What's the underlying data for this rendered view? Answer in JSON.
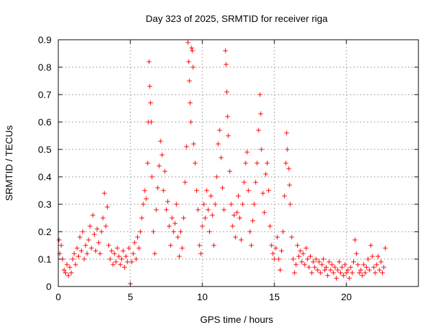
{
  "chart_data": {
    "type": "scatter",
    "title": "Day 323 of 2025, SRMTID for receiver riga",
    "xlabel": "GPS time / hours",
    "ylabel": "SRMTID / TECUs",
    "xlim": [
      0,
      25
    ],
    "ylim": [
      0,
      0.9
    ],
    "xticks": [
      0,
      5,
      10,
      15,
      20
    ],
    "yticks": [
      0,
      0.1,
      0.2,
      0.3,
      0.4,
      0.5,
      0.6,
      0.7,
      0.8,
      0.9
    ],
    "xtick_labels": [
      "0",
      "5",
      "10",
      "15",
      "20"
    ],
    "ytick_labels": [
      "0",
      "0.1",
      "0.2",
      "0.3",
      "0.4",
      "0.5",
      "0.6",
      "0.7",
      "0.8",
      "0.9"
    ],
    "grid": true,
    "marker": "plus",
    "color": "#ff0000",
    "series": [
      {
        "name": "SRMTID",
        "points": [
          [
            0.05,
            0.17
          ],
          [
            0.1,
            0.12
          ],
          [
            0.2,
            0.15
          ],
          [
            0.3,
            0.1
          ],
          [
            0.4,
            0.06
          ],
          [
            0.5,
            0.05
          ],
          [
            0.6,
            0.08
          ],
          [
            0.7,
            0.04
          ],
          [
            0.8,
            0.07
          ],
          [
            0.9,
            0.05
          ],
          [
            1.0,
            0.1
          ],
          [
            1.1,
            0.12
          ],
          [
            1.2,
            0.08
          ],
          [
            1.3,
            0.14
          ],
          [
            1.4,
            0.11
          ],
          [
            1.5,
            0.18
          ],
          [
            1.6,
            0.13
          ],
          [
            1.7,
            0.2
          ],
          [
            1.8,
            0.1
          ],
          [
            1.9,
            0.15
          ],
          [
            2.0,
            0.12
          ],
          [
            2.1,
            0.17
          ],
          [
            2.2,
            0.22
          ],
          [
            2.3,
            0.14
          ],
          [
            2.4,
            0.26
          ],
          [
            2.5,
            0.19
          ],
          [
            2.6,
            0.13
          ],
          [
            2.7,
            0.21
          ],
          [
            2.8,
            0.16
          ],
          [
            2.9,
            0.12
          ],
          [
            3.0,
            0.2
          ],
          [
            3.1,
            0.25
          ],
          [
            3.2,
            0.34
          ],
          [
            3.3,
            0.22
          ],
          [
            3.4,
            0.29
          ],
          [
            3.5,
            0.15
          ],
          [
            3.6,
            0.1
          ],
          [
            3.7,
            0.13
          ],
          [
            3.8,
            0.08
          ],
          [
            3.9,
            0.12
          ],
          [
            4.0,
            0.09
          ],
          [
            4.1,
            0.14
          ],
          [
            4.2,
            0.11
          ],
          [
            4.3,
            0.08
          ],
          [
            4.4,
            0.1
          ],
          [
            4.5,
            0.13
          ],
          [
            4.6,
            0.07
          ],
          [
            4.7,
            0.11
          ],
          [
            4.8,
            0.09
          ],
          [
            4.9,
            0.14
          ],
          [
            5.0,
            0.01
          ],
          [
            5.1,
            0.09
          ],
          [
            5.2,
            0.12
          ],
          [
            5.3,
            0.16
          ],
          [
            5.4,
            0.1
          ],
          [
            5.5,
            0.18
          ],
          [
            5.6,
            0.14
          ],
          [
            5.7,
            0.2
          ],
          [
            5.8,
            0.25
          ],
          [
            5.9,
            0.3
          ],
          [
            6.0,
            0.35
          ],
          [
            6.1,
            0.32
          ],
          [
            6.2,
            0.45
          ],
          [
            6.25,
            0.6
          ],
          [
            6.3,
            0.82
          ],
          [
            6.35,
            0.73
          ],
          [
            6.4,
            0.67
          ],
          [
            6.45,
            0.6
          ],
          [
            6.5,
            0.4
          ],
          [
            6.6,
            0.2
          ],
          [
            6.7,
            0.12
          ],
          [
            6.8,
            0.28
          ],
          [
            6.9,
            0.36
          ],
          [
            7.0,
            0.44
          ],
          [
            7.1,
            0.53
          ],
          [
            7.2,
            0.48
          ],
          [
            7.3,
            0.35
          ],
          [
            7.4,
            0.42
          ],
          [
            7.5,
            0.28
          ],
          [
            7.6,
            0.31
          ],
          [
            7.7,
            0.22
          ],
          [
            7.8,
            0.15
          ],
          [
            7.9,
            0.25
          ],
          [
            8.0,
            0.2
          ],
          [
            8.1,
            0.23
          ],
          [
            8.2,
            0.3
          ],
          [
            8.3,
            0.18
          ],
          [
            8.4,
            0.11
          ],
          [
            8.5,
            0.2
          ],
          [
            8.6,
            0.14
          ],
          [
            8.7,
            0.25
          ],
          [
            8.8,
            0.38
          ],
          [
            8.9,
            0.51
          ],
          [
            9.0,
            0.89
          ],
          [
            9.05,
            0.82
          ],
          [
            9.1,
            0.75
          ],
          [
            9.15,
            0.67
          ],
          [
            9.2,
            0.6
          ],
          [
            9.25,
            0.87
          ],
          [
            9.3,
            0.86
          ],
          [
            9.35,
            0.8
          ],
          [
            9.4,
            0.52
          ],
          [
            9.5,
            0.45
          ],
          [
            9.6,
            0.35
          ],
          [
            9.7,
            0.28
          ],
          [
            9.8,
            0.15
          ],
          [
            9.9,
            0.12
          ],
          [
            10.0,
            0.22
          ],
          [
            10.1,
            0.3
          ],
          [
            10.2,
            0.25
          ],
          [
            10.3,
            0.35
          ],
          [
            10.4,
            0.28
          ],
          [
            10.5,
            0.2
          ],
          [
            10.6,
            0.33
          ],
          [
            10.7,
            0.26
          ],
          [
            10.8,
            0.15
          ],
          [
            10.9,
            0.3
          ],
          [
            11.0,
            0.4
          ],
          [
            11.1,
            0.52
          ],
          [
            11.2,
            0.57
          ],
          [
            11.3,
            0.47
          ],
          [
            11.4,
            0.36
          ],
          [
            11.5,
            0.28
          ],
          [
            11.6,
            0.86
          ],
          [
            11.65,
            0.81
          ],
          [
            11.7,
            0.71
          ],
          [
            11.75,
            0.62
          ],
          [
            11.8,
            0.55
          ],
          [
            11.9,
            0.42
          ],
          [
            12.0,
            0.3
          ],
          [
            12.1,
            0.22
          ],
          [
            12.2,
            0.26
          ],
          [
            12.3,
            0.18
          ],
          [
            12.4,
            0.27
          ],
          [
            12.5,
            0.33
          ],
          [
            12.6,
            0.25
          ],
          [
            12.7,
            0.17
          ],
          [
            12.8,
            0.3
          ],
          [
            12.9,
            0.38
          ],
          [
            13.0,
            0.45
          ],
          [
            13.1,
            0.49
          ],
          [
            13.2,
            0.35
          ],
          [
            13.3,
            0.2
          ],
          [
            13.4,
            0.15
          ],
          [
            13.5,
            0.24
          ],
          [
            13.6,
            0.3
          ],
          [
            13.7,
            0.38
          ],
          [
            13.8,
            0.45
          ],
          [
            13.9,
            0.57
          ],
          [
            14.0,
            0.7
          ],
          [
            14.05,
            0.63
          ],
          [
            14.1,
            0.5
          ],
          [
            14.2,
            0.34
          ],
          [
            14.3,
            0.27
          ],
          [
            14.4,
            0.41
          ],
          [
            14.5,
            0.45
          ],
          [
            14.6,
            0.35
          ],
          [
            14.7,
            0.22
          ],
          [
            14.8,
            0.15
          ],
          [
            14.9,
            0.12
          ],
          [
            15.0,
            0.1
          ],
          [
            15.1,
            0.14
          ],
          [
            15.2,
            0.18
          ],
          [
            15.3,
            0.1
          ],
          [
            15.4,
            0.06
          ],
          [
            15.5,
            0.13
          ],
          [
            15.6,
            0.2
          ],
          [
            15.7,
            0.33
          ],
          [
            15.8,
            0.45
          ],
          [
            15.85,
            0.56
          ],
          [
            15.9,
            0.5
          ],
          [
            16.0,
            0.43
          ],
          [
            16.05,
            0.37
          ],
          [
            16.1,
            0.3
          ],
          [
            16.2,
            0.18
          ],
          [
            16.3,
            0.1
          ],
          [
            16.4,
            0.05
          ],
          [
            16.5,
            0.08
          ],
          [
            16.6,
            0.15
          ],
          [
            16.7,
            0.11
          ],
          [
            16.8,
            0.13
          ],
          [
            16.9,
            0.09
          ],
          [
            17.0,
            0.12
          ],
          [
            17.1,
            0.08
          ],
          [
            17.2,
            0.14
          ],
          [
            17.3,
            0.1
          ],
          [
            17.4,
            0.07
          ],
          [
            17.5,
            0.11
          ],
          [
            17.6,
            0.05
          ],
          [
            17.7,
            0.09
          ],
          [
            17.8,
            0.07
          ],
          [
            17.9,
            0.1
          ],
          [
            18.0,
            0.06
          ],
          [
            18.1,
            0.09
          ],
          [
            18.2,
            0.05
          ],
          [
            18.3,
            0.08
          ],
          [
            18.4,
            0.1
          ],
          [
            18.5,
            0.06
          ],
          [
            18.6,
            0.07
          ],
          [
            18.7,
            0.04
          ],
          [
            18.8,
            0.09
          ],
          [
            18.9,
            0.06
          ],
          [
            19.0,
            0.08
          ],
          [
            19.1,
            0.05
          ],
          [
            19.2,
            0.07
          ],
          [
            19.3,
            0.03
          ],
          [
            19.4,
            0.06
          ],
          [
            19.5,
            0.09
          ],
          [
            19.6,
            0.05
          ],
          [
            19.7,
            0.07
          ],
          [
            19.8,
            0.04
          ],
          [
            19.9,
            0.08
          ],
          [
            20.0,
            0.05
          ],
          [
            20.1,
            0.06
          ],
          [
            20.2,
            0.03
          ],
          [
            20.3,
            0.07
          ],
          [
            20.4,
            0.05
          ],
          [
            20.5,
            0.09
          ],
          [
            20.6,
            0.17
          ],
          [
            20.7,
            0.12
          ],
          [
            20.8,
            0.08
          ],
          [
            20.9,
            0.05
          ],
          [
            21.0,
            0.06
          ],
          [
            21.1,
            0.04
          ],
          [
            21.2,
            0.08
          ],
          [
            21.3,
            0.05
          ],
          [
            21.4,
            0.07
          ],
          [
            21.5,
            0.1
          ],
          [
            21.6,
            0.06
          ],
          [
            21.7,
            0.15
          ],
          [
            21.8,
            0.11
          ],
          [
            21.9,
            0.07
          ],
          [
            22.0,
            0.05
          ],
          [
            22.1,
            0.08
          ],
          [
            22.2,
            0.11
          ],
          [
            22.3,
            0.06
          ],
          [
            22.4,
            0.09
          ],
          [
            22.5,
            0.05
          ],
          [
            22.6,
            0.07
          ],
          [
            22.7,
            0.14
          ]
        ]
      }
    ]
  }
}
